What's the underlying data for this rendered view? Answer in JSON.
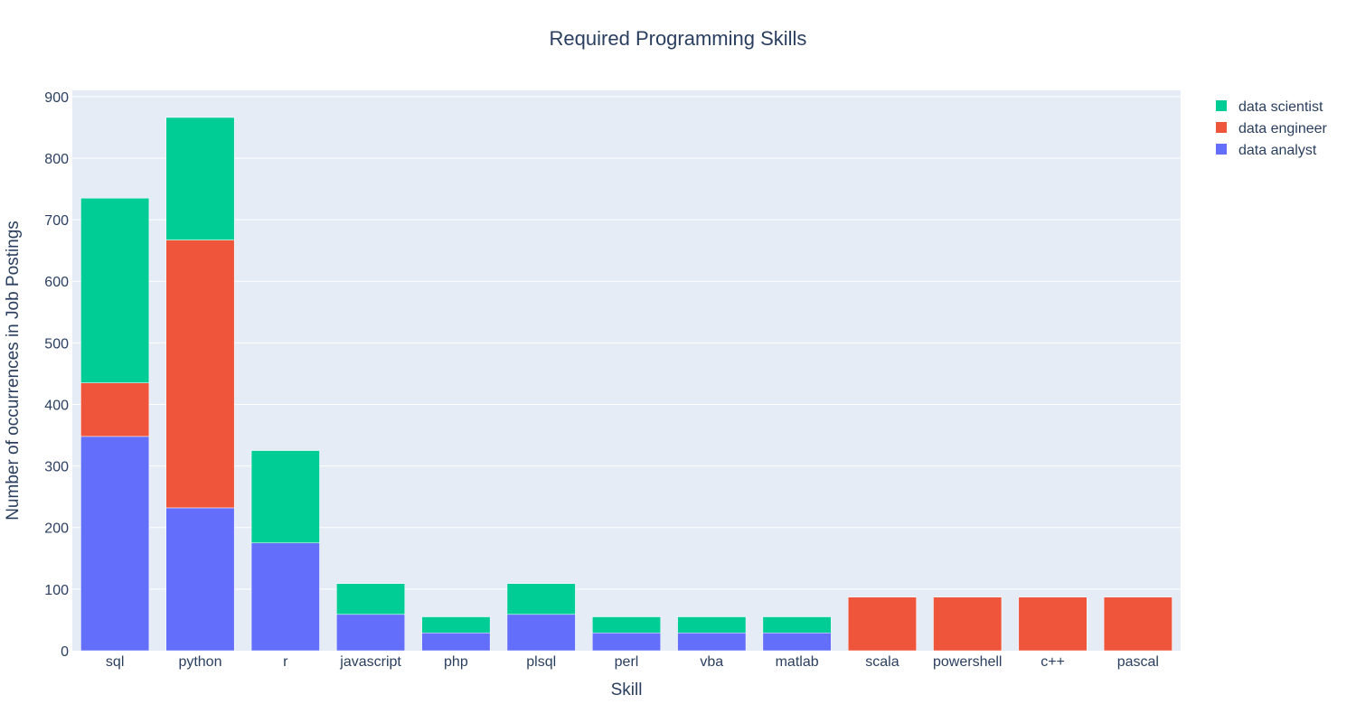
{
  "chart_data": {
    "type": "bar",
    "barmode": "stack",
    "title": "Required Programming Skills",
    "xlabel": "Skill",
    "ylabel": "Number of occurrences in Job Postings",
    "ylim": [
      0,
      910
    ],
    "yticks": [
      0,
      100,
      200,
      300,
      400,
      500,
      600,
      700,
      800,
      900
    ],
    "grid": true,
    "legend_position": "top-right",
    "categories": [
      "sql",
      "python",
      "r",
      "javascript",
      "php",
      "plsql",
      "perl",
      "vba",
      "matlab",
      "scala",
      "powershell",
      "c++",
      "pascal"
    ],
    "series": [
      {
        "name": "data analyst",
        "color": "#636efa",
        "values": [
          348,
          232,
          175,
          59,
          29,
          59,
          29,
          29,
          29,
          0,
          0,
          0,
          0
        ]
      },
      {
        "name": "data engineer",
        "color": "#ef553b",
        "values": [
          87,
          435,
          0,
          0,
          0,
          0,
          0,
          0,
          0,
          87,
          87,
          87,
          87
        ]
      },
      {
        "name": "data scientist",
        "color": "#00cc96",
        "values": [
          300,
          199,
          150,
          50,
          26,
          50,
          26,
          26,
          26,
          0,
          0,
          0,
          0
        ]
      }
    ],
    "legend_order": [
      "data scientist",
      "data engineer",
      "data analyst"
    ],
    "plot_bg": "#e5ecf6",
    "grid_color": "#ffffff"
  }
}
